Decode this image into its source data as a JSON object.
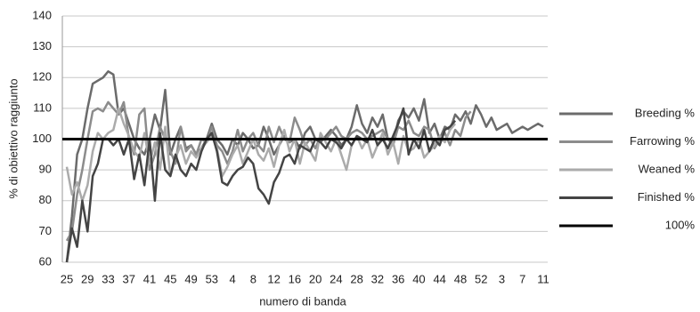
{
  "chart_data": {
    "type": "line",
    "x_label": "numero di banda",
    "y_label": "% di obiettivo raggiunto",
    "categories": [
      "25",
      null,
      null,
      null,
      "29",
      null,
      null,
      null,
      "33",
      null,
      null,
      null,
      "37",
      null,
      null,
      null,
      "41",
      null,
      null,
      null,
      "45",
      null,
      null,
      null,
      "49",
      null,
      null,
      null,
      "53",
      null,
      null,
      null,
      "4",
      null,
      null,
      null,
      "8",
      null,
      null,
      null,
      "12",
      null,
      null,
      null,
      "16",
      null,
      null,
      null,
      "20",
      null,
      null,
      null,
      "24",
      null,
      null,
      null,
      "28",
      null,
      null,
      null,
      "32",
      null,
      null,
      null,
      "36",
      null,
      null,
      null,
      "40",
      null,
      null,
      null,
      "44",
      null,
      null,
      null,
      "48",
      null,
      null,
      null,
      "52",
      null,
      null,
      null,
      "3",
      null,
      null,
      null,
      "7",
      null,
      null,
      null,
      "11"
    ],
    "series": [
      {
        "name": "Breeding %",
        "color": "#6b6b6b",
        "values": [
          60,
          75,
          95,
          100,
          110,
          118,
          119,
          120,
          122,
          121,
          108,
          110,
          105,
          100,
          97,
          95,
          100,
          108,
          103,
          116,
          95,
          100,
          104,
          97,
          98,
          95,
          97,
          100,
          105,
          100,
          98,
          95,
          100,
          98,
          102,
          100,
          97,
          98,
          104,
          100,
          95,
          98,
          101,
          99,
          100,
          97,
          102,
          104,
          100,
          99,
          101,
          103,
          101,
          98,
          100,
          104,
          111,
          105,
          102,
          107,
          104,
          108,
          100,
          99,
          106,
          109,
          107,
          110,
          106,
          113,
          102,
          105,
          100,
          104,
          103,
          108,
          106,
          109,
          105,
          111,
          108,
          104,
          107,
          103,
          104,
          105,
          102,
          103,
          104,
          103,
          104,
          105,
          104
        ]
      },
      {
        "name": "Farrowing %",
        "color": "#8c8c8c",
        "values": [
          67,
          70,
          82,
          90,
          100,
          109,
          110,
          109,
          112,
          110,
          108,
          112,
          100,
          95,
          108,
          110,
          90,
          95,
          104,
          100,
          96,
          92,
          104,
          96,
          98,
          95,
          100,
          99,
          104,
          98,
          96,
          92,
          96,
          103,
          96,
          100,
          102,
          98,
          96,
          104,
          99,
          104,
          100,
          99,
          107,
          103,
          98,
          100,
          97,
          101,
          100,
          102,
          104,
          101,
          100,
          102,
          103,
          102,
          100,
          101,
          102,
          103,
          100,
          98,
          104,
          103,
          106,
          102,
          101,
          104,
          103,
          97,
          100,
          102,
          98,
          103,
          101,
          107,
          109,
          null,
          null,
          null,
          null,
          null,
          null,
          null,
          null,
          null,
          null,
          null,
          null,
          null,
          null
        ]
      },
      {
        "name": "Weaned %",
        "color": "#ababab",
        "values": [
          91,
          82,
          86,
          80,
          85,
          96,
          102,
          100,
          102,
          103,
          110,
          105,
          101,
          96,
          94,
          102,
          92,
          99,
          90,
          104,
          88,
          94,
          98,
          92,
          96,
          94,
          97,
          99,
          101,
          97,
          88,
          91,
          95,
          98,
          92,
          96,
          100,
          95,
          93,
          97,
          91,
          98,
          103,
          96,
          100,
          92,
          99,
          96,
          93,
          102,
          99,
          96,
          100,
          95,
          90,
          98,
          101,
          97,
          100,
          94,
          98,
          102,
          95,
          99,
          92,
          101,
          96,
          97,
          100,
          94,
          96,
          98,
          101,
          99,
          103,
          105,
          null,
          null,
          null,
          null,
          null,
          null,
          null,
          null,
          null,
          null,
          null,
          null,
          null,
          null,
          null,
          null,
          null
        ]
      },
      {
        "name": "Finished %",
        "color": "#444444",
        "values": [
          60,
          71,
          65,
          80,
          70,
          88,
          92,
          100,
          100,
          98,
          100,
          95,
          100,
          87,
          95,
          85,
          100,
          80,
          102,
          90,
          88,
          95,
          90,
          88,
          92,
          90,
          96,
          100,
          102,
          96,
          86,
          85,
          88,
          90,
          91,
          94,
          92,
          84,
          82,
          79,
          86,
          89,
          94,
          95,
          92,
          98,
          97,
          96,
          100,
          99,
          97,
          100,
          99,
          97,
          100,
          98,
          101,
          100,
          99,
          103,
          98,
          100,
          97,
          101,
          105,
          110,
          95,
          100,
          97,
          103,
          96,
          100,
          98,
          103,
          104,
          106,
          null,
          null,
          null,
          null,
          null,
          null,
          null,
          null,
          null,
          null,
          null,
          null,
          null,
          null,
          null,
          null,
          null
        ]
      }
    ],
    "reference_line": {
      "name": "100%",
      "value": 100,
      "color": "#000000"
    },
    "ylim": [
      60,
      140
    ],
    "yticks": [
      60,
      70,
      80,
      90,
      100,
      110,
      120,
      130,
      140
    ],
    "grid": true,
    "legend": "right"
  }
}
